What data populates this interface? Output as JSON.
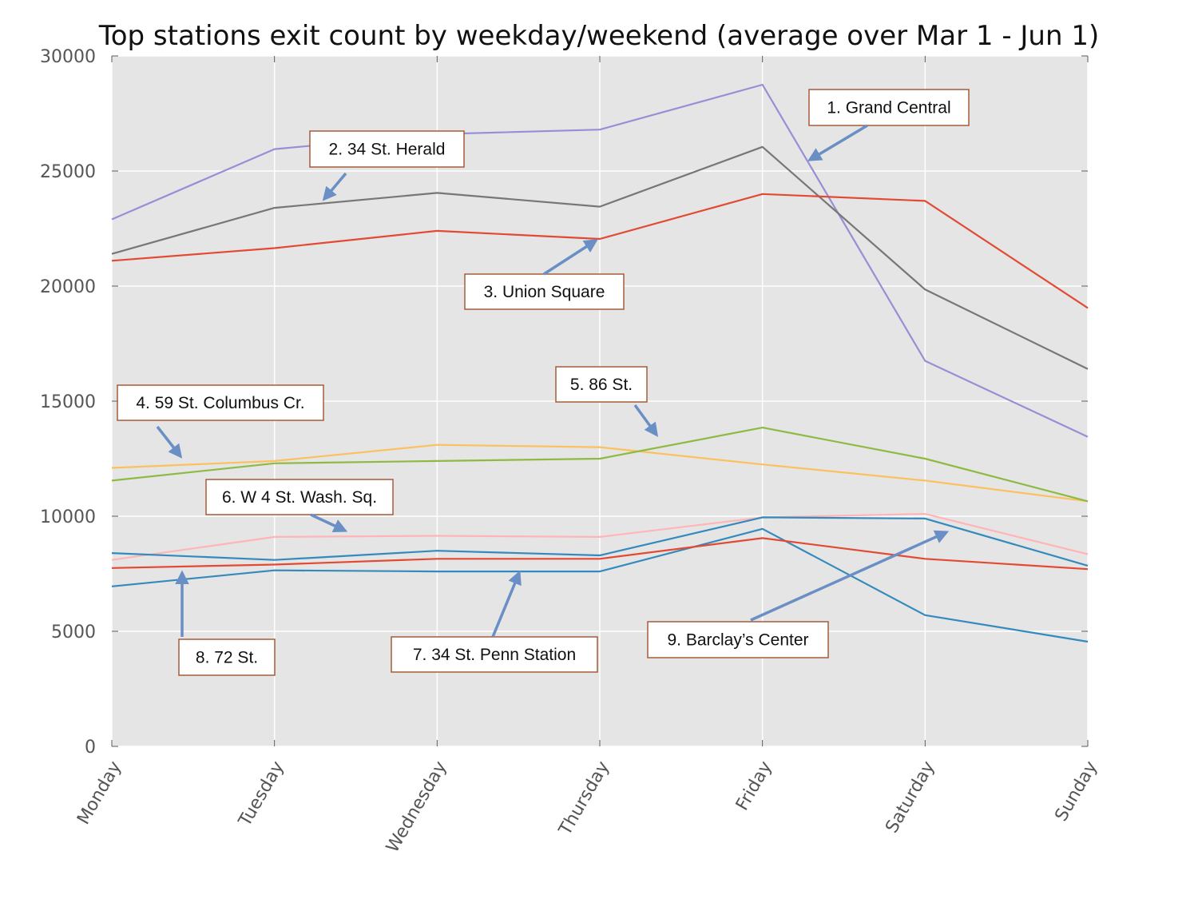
{
  "chart_data": {
    "type": "line",
    "title": "Top stations exit count by weekday/weekend (average over Mar 1 - Jun 1)",
    "xlabel": "",
    "ylabel": "",
    "categories": [
      "Monday",
      "Tuesday",
      "Wednesday",
      "Thursday",
      "Friday",
      "Saturday",
      "Sunday"
    ],
    "ylim": [
      0,
      30000
    ],
    "yticks": [
      0,
      5000,
      10000,
      15000,
      20000,
      25000,
      30000
    ],
    "grid": true,
    "background": "#e5e5e5",
    "series": [
      {
        "color": "#988ed5",
        "values": [
          22900,
          25950,
          26600,
          26800,
          28750,
          16750,
          13450
        ]
      },
      {
        "color": "#777777",
        "values": [
          21400,
          23400,
          24050,
          23450,
          26050,
          19850,
          16400
        ]
      },
      {
        "color": "#e24a33",
        "values": [
          21100,
          21650,
          22400,
          22050,
          24000,
          23700,
          19050
        ]
      },
      {
        "color": "#fbc15e",
        "values": [
          12100,
          12400,
          13100,
          13000,
          12250,
          11550,
          10650
        ]
      },
      {
        "color": "#8eba42",
        "values": [
          11550,
          12300,
          12400,
          12500,
          13850,
          12500,
          10650
        ]
      },
      {
        "color": "#ffb5b8",
        "values": [
          8100,
          9100,
          9150,
          9100,
          9950,
          10100,
          8350
        ]
      },
      {
        "color": "#348abd",
        "values": [
          6950,
          7650,
          7600,
          7600,
          9450,
          5700,
          4550
        ]
      },
      {
        "color": "#e24a33",
        "values": [
          7750,
          7900,
          8150,
          8150,
          9050,
          8150,
          7700
        ]
      },
      {
        "color": "#348abd",
        "values": [
          8400,
          8100,
          8500,
          8300,
          9950,
          9900,
          7850
        ]
      }
    ],
    "annotations": [
      {
        "text": "1. Grand Central"
      },
      {
        "text": "2. 34 St. Herald"
      },
      {
        "text": "3. Union Square"
      },
      {
        "text": "4. 59 St. Columbus Cr."
      },
      {
        "text": "5. 86 St."
      },
      {
        "text": "6. W 4 St. Wash. Sq."
      },
      {
        "text": "7. 34 St. Penn Station"
      },
      {
        "text": "8. 72 St."
      },
      {
        "text": "9. Barclay’s Center"
      }
    ],
    "annotation_box_color": "#a0522d",
    "arrow_color": "#6a8fc4"
  }
}
